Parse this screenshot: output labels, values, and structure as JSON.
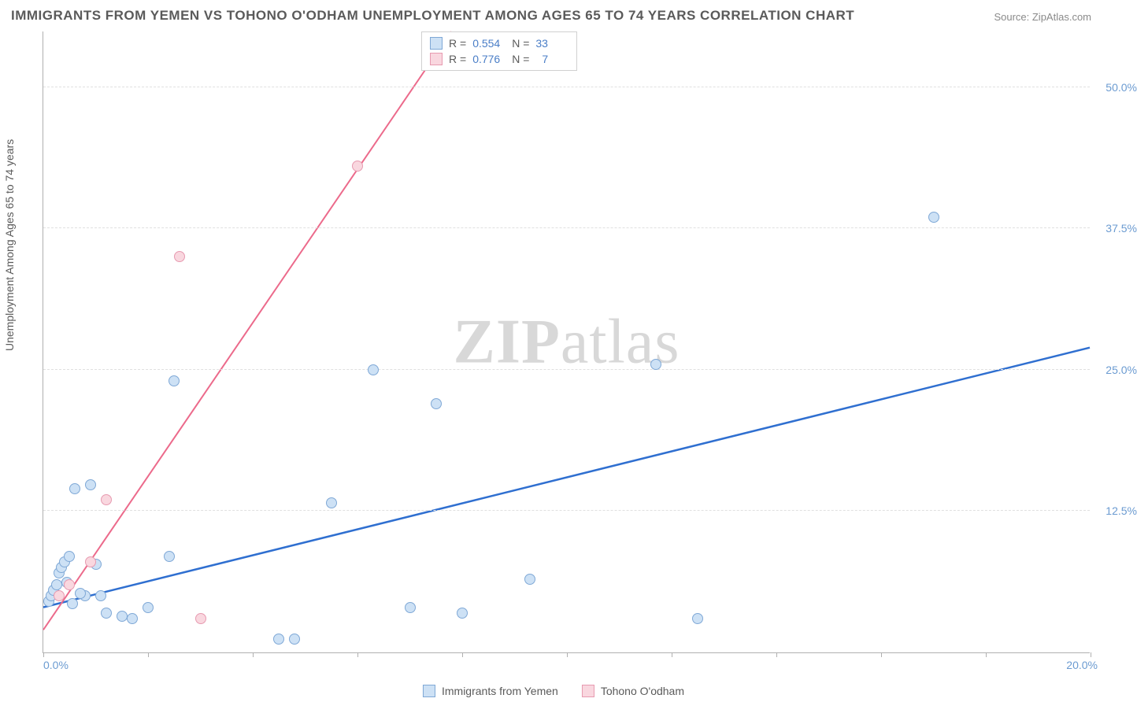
{
  "title": "IMMIGRANTS FROM YEMEN VS TOHONO O'ODHAM UNEMPLOYMENT AMONG AGES 65 TO 74 YEARS CORRELATION CHART",
  "source": "Source: ZipAtlas.com",
  "watermark_a": "ZIP",
  "watermark_b": "atlas",
  "y_axis_label": "Unemployment Among Ages 65 to 74 years",
  "chart": {
    "type": "scatter",
    "background_color": "#ffffff",
    "grid_color": "#e0e0e0",
    "axis_color": "#b0b0b0",
    "tick_label_color": "#6b9bd1",
    "title_color": "#5a5a5a",
    "title_fontsize": 17,
    "label_fontsize": 14,
    "xlim": [
      0,
      20
    ],
    "ylim": [
      0,
      55
    ],
    "x_ticks": [
      0,
      2,
      4,
      6,
      8,
      10,
      12,
      14,
      16,
      18,
      20
    ],
    "y_ticks": [
      12.5,
      25.0,
      37.5,
      50.0
    ],
    "x_origin_label": "0.0%",
    "x_max_label": "20.0%",
    "y_tick_labels": [
      "12.5%",
      "25.0%",
      "37.5%",
      "50.0%"
    ],
    "point_radius": 7,
    "point_border_width": 1.2,
    "series": [
      {
        "name": "Immigrants from Yemen",
        "fill": "#cde1f5",
        "stroke": "#7fa8d6",
        "line_color": "#2f6fd0",
        "line_width": 2.5,
        "R": "0.554",
        "N": "33",
        "trend": {
          "x1": 0,
          "y1": 4.0,
          "x2": 20,
          "y2": 27.0
        },
        "points": [
          {
            "x": 0.1,
            "y": 4.5
          },
          {
            "x": 0.15,
            "y": 5.0
          },
          {
            "x": 0.2,
            "y": 5.5
          },
          {
            "x": 0.25,
            "y": 6.0
          },
          {
            "x": 0.3,
            "y": 7.0
          },
          {
            "x": 0.35,
            "y": 7.5
          },
          {
            "x": 0.4,
            "y": 8.0
          },
          {
            "x": 0.5,
            "y": 8.5
          },
          {
            "x": 0.6,
            "y": 14.5
          },
          {
            "x": 0.9,
            "y": 14.8
          },
          {
            "x": 0.8,
            "y": 5.0
          },
          {
            "x": 1.1,
            "y": 5.0
          },
          {
            "x": 1.2,
            "y": 3.5
          },
          {
            "x": 1.5,
            "y": 3.2
          },
          {
            "x": 1.7,
            "y": 3.0
          },
          {
            "x": 2.0,
            "y": 4.0
          },
          {
            "x": 2.4,
            "y": 8.5
          },
          {
            "x": 2.5,
            "y": 24.0
          },
          {
            "x": 4.5,
            "y": 1.2
          },
          {
            "x": 4.8,
            "y": 1.2
          },
          {
            "x": 5.5,
            "y": 13.2
          },
          {
            "x": 6.3,
            "y": 25.0
          },
          {
            "x": 7.0,
            "y": 4.0
          },
          {
            "x": 7.5,
            "y": 22.0
          },
          {
            "x": 8.0,
            "y": 3.5
          },
          {
            "x": 9.3,
            "y": 6.5
          },
          {
            "x": 11.7,
            "y": 25.5
          },
          {
            "x": 12.5,
            "y": 3.0
          },
          {
            "x": 17.0,
            "y": 38.5
          },
          {
            "x": 0.45,
            "y": 6.2
          },
          {
            "x": 0.55,
            "y": 4.3
          },
          {
            "x": 0.7,
            "y": 5.2
          },
          {
            "x": 1.0,
            "y": 7.8
          }
        ]
      },
      {
        "name": "Tohono O'odham",
        "fill": "#f9d7df",
        "stroke": "#e79ab0",
        "line_color": "#ec6a8b",
        "line_width": 2,
        "R": "0.776",
        "N": "7",
        "trend": {
          "x1": 0,
          "y1": 2.0,
          "x2": 7.8,
          "y2": 55.0
        },
        "points": [
          {
            "x": 0.3,
            "y": 5.0
          },
          {
            "x": 0.5,
            "y": 6.0
          },
          {
            "x": 0.9,
            "y": 8.0
          },
          {
            "x": 1.2,
            "y": 13.5
          },
          {
            "x": 2.6,
            "y": 35.0
          },
          {
            "x": 3.0,
            "y": 3.0
          },
          {
            "x": 6.0,
            "y": 43.0
          }
        ]
      }
    ]
  },
  "legend": {
    "series1": "Immigrants from Yemen",
    "series2": "Tohono O'odham"
  }
}
